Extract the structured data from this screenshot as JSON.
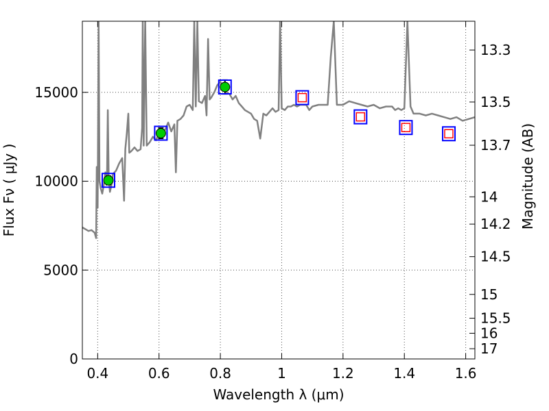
{
  "chart_data": {
    "type": "line",
    "xlabel": "Wavelength  λ (μm)",
    "ylabel": "Flux  Fν  ( μJy )",
    "y2label": "Magnitude (AB)",
    "xlim": [
      0.35,
      1.63
    ],
    "ylim": [
      0,
      19000
    ],
    "grid": true,
    "x_ticks": [
      {
        "value": 0.4,
        "label": "0.4"
      },
      {
        "value": 0.6,
        "label": "0.6"
      },
      {
        "value": 0.8,
        "label": "0.8"
      },
      {
        "value": 1.0,
        "label": "1"
      },
      {
        "value": 1.2,
        "label": "1.2"
      },
      {
        "value": 1.4,
        "label": "1.4"
      },
      {
        "value": 1.6,
        "label": "1.6"
      }
    ],
    "y_ticks": [
      {
        "value": 0,
        "label": "0"
      },
      {
        "value": 5000,
        "label": "5000"
      },
      {
        "value": 10000,
        "label": "10000"
      },
      {
        "value": 15000,
        "label": "15000"
      }
    ],
    "y2_ticks": [
      {
        "mag": 13.3,
        "label": "13.3"
      },
      {
        "mag": 13.5,
        "label": "13.5"
      },
      {
        "mag": 13.7,
        "label": "13.7"
      },
      {
        "mag": 14.0,
        "label": "14"
      },
      {
        "mag": 14.2,
        "label": "14.2"
      },
      {
        "mag": 14.5,
        "label": "14.5"
      },
      {
        "mag": 15.0,
        "label": "15"
      },
      {
        "mag": 15.5,
        "label": "15.5"
      },
      {
        "mag": 16.0,
        "label": "16"
      },
      {
        "mag": 17.0,
        "label": "17"
      }
    ],
    "spectrum": {
      "color": "#808080",
      "points": [
        [
          0.35,
          7400
        ],
        [
          0.36,
          7300
        ],
        [
          0.37,
          7200
        ],
        [
          0.38,
          7250
        ],
        [
          0.39,
          7100
        ],
        [
          0.395,
          6800
        ],
        [
          0.397,
          10800
        ],
        [
          0.4,
          8500
        ],
        [
          0.403,
          19000
        ],
        [
          0.406,
          10000
        ],
        [
          0.41,
          9600
        ],
        [
          0.415,
          9300
        ],
        [
          0.42,
          9800
        ],
        [
          0.425,
          10500
        ],
        [
          0.43,
          9800
        ],
        [
          0.433,
          14000
        ],
        [
          0.436,
          10200
        ],
        [
          0.44,
          9400
        ],
        [
          0.445,
          9800
        ],
        [
          0.45,
          10400
        ],
        [
          0.46,
          10600
        ],
        [
          0.47,
          11000
        ],
        [
          0.48,
          11300
        ],
        [
          0.486,
          8900
        ],
        [
          0.49,
          11800
        ],
        [
          0.495,
          12700
        ],
        [
          0.5,
          13800
        ],
        [
          0.503,
          11600
        ],
        [
          0.51,
          11700
        ],
        [
          0.52,
          11900
        ],
        [
          0.53,
          11700
        ],
        [
          0.54,
          11800
        ],
        [
          0.545,
          13000
        ],
        [
          0.547,
          19000
        ],
        [
          0.55,
          12000
        ],
        [
          0.555,
          19000
        ],
        [
          0.56,
          12000
        ],
        [
          0.57,
          12200
        ],
        [
          0.58,
          12500
        ],
        [
          0.59,
          12300
        ],
        [
          0.6,
          12700
        ],
        [
          0.61,
          12800
        ],
        [
          0.62,
          12900
        ],
        [
          0.63,
          13300
        ],
        [
          0.64,
          12800
        ],
        [
          0.65,
          13200
        ],
        [
          0.655,
          10500
        ],
        [
          0.66,
          13400
        ],
        [
          0.67,
          13500
        ],
        [
          0.68,
          13700
        ],
        [
          0.69,
          14200
        ],
        [
          0.7,
          14300
        ],
        [
          0.71,
          14000
        ],
        [
          0.715,
          19000
        ],
        [
          0.72,
          14200
        ],
        [
          0.725,
          19000
        ],
        [
          0.73,
          14500
        ],
        [
          0.74,
          14400
        ],
        [
          0.75,
          14800
        ],
        [
          0.755,
          13700
        ],
        [
          0.76,
          18000
        ],
        [
          0.765,
          14600
        ],
        [
          0.77,
          14700
        ],
        [
          0.78,
          15000
        ],
        [
          0.79,
          15400
        ],
        [
          0.8,
          15600
        ],
        [
          0.81,
          15200
        ],
        [
          0.82,
          15000
        ],
        [
          0.83,
          14900
        ],
        [
          0.84,
          14600
        ],
        [
          0.85,
          14800
        ],
        [
          0.86,
          14400
        ],
        [
          0.87,
          14200
        ],
        [
          0.88,
          14000
        ],
        [
          0.89,
          13900
        ],
        [
          0.9,
          13800
        ],
        [
          0.91,
          13500
        ],
        [
          0.92,
          13400
        ],
        [
          0.93,
          12400
        ],
        [
          0.94,
          13800
        ],
        [
          0.95,
          13700
        ],
        [
          0.96,
          13900
        ],
        [
          0.97,
          14100
        ],
        [
          0.98,
          13900
        ],
        [
          0.99,
          14000
        ],
        [
          0.995,
          19000
        ],
        [
          1.0,
          14100
        ],
        [
          1.01,
          14000
        ],
        [
          1.02,
          14200
        ],
        [
          1.03,
          14200
        ],
        [
          1.04,
          14300
        ],
        [
          1.05,
          14200
        ],
        [
          1.06,
          14300
        ],
        [
          1.08,
          14300
        ],
        [
          1.09,
          14000
        ],
        [
          1.1,
          14200
        ],
        [
          1.12,
          14300
        ],
        [
          1.15,
          14300
        ],
        [
          1.16,
          17000
        ],
        [
          1.17,
          19000
        ],
        [
          1.18,
          14300
        ],
        [
          1.2,
          14300
        ],
        [
          1.22,
          14500
        ],
        [
          1.24,
          14400
        ],
        [
          1.26,
          14300
        ],
        [
          1.28,
          14200
        ],
        [
          1.3,
          14300
        ],
        [
          1.32,
          14100
        ],
        [
          1.34,
          14200
        ],
        [
          1.36,
          14200
        ],
        [
          1.37,
          14000
        ],
        [
          1.38,
          14100
        ],
        [
          1.39,
          14000
        ],
        [
          1.4,
          14100
        ],
        [
          1.41,
          19000
        ],
        [
          1.42,
          14200
        ],
        [
          1.43,
          13800
        ],
        [
          1.45,
          13800
        ],
        [
          1.47,
          13700
        ],
        [
          1.49,
          13800
        ],
        [
          1.51,
          13700
        ],
        [
          1.53,
          13600
        ],
        [
          1.55,
          13500
        ],
        [
          1.57,
          13600
        ],
        [
          1.59,
          13400
        ],
        [
          1.61,
          13500
        ],
        [
          1.63,
          13600
        ]
      ]
    },
    "series": [
      {
        "marker": "circle-filled",
        "color": "#00cc00",
        "edge": "#000000",
        "errorbar": true,
        "points": [
          [
            0.435,
            10050,
            250
          ],
          [
            0.606,
            12700,
            300
          ],
          [
            0.815,
            15300,
            400
          ]
        ]
      },
      {
        "marker": "square-blue",
        "color": "#0000ff",
        "points": [
          [
            0.435,
            10050
          ],
          [
            0.606,
            12700
          ],
          [
            0.815,
            15300
          ],
          [
            1.067,
            14700
          ],
          [
            1.257,
            13620
          ],
          [
            1.405,
            13020
          ],
          [
            1.545,
            12670
          ]
        ]
      },
      {
        "marker": "square-red",
        "color": "#ff0000",
        "points": [
          [
            1.067,
            14700
          ],
          [
            1.257,
            13620
          ],
          [
            1.405,
            13020
          ],
          [
            1.545,
            12670
          ]
        ]
      }
    ]
  }
}
